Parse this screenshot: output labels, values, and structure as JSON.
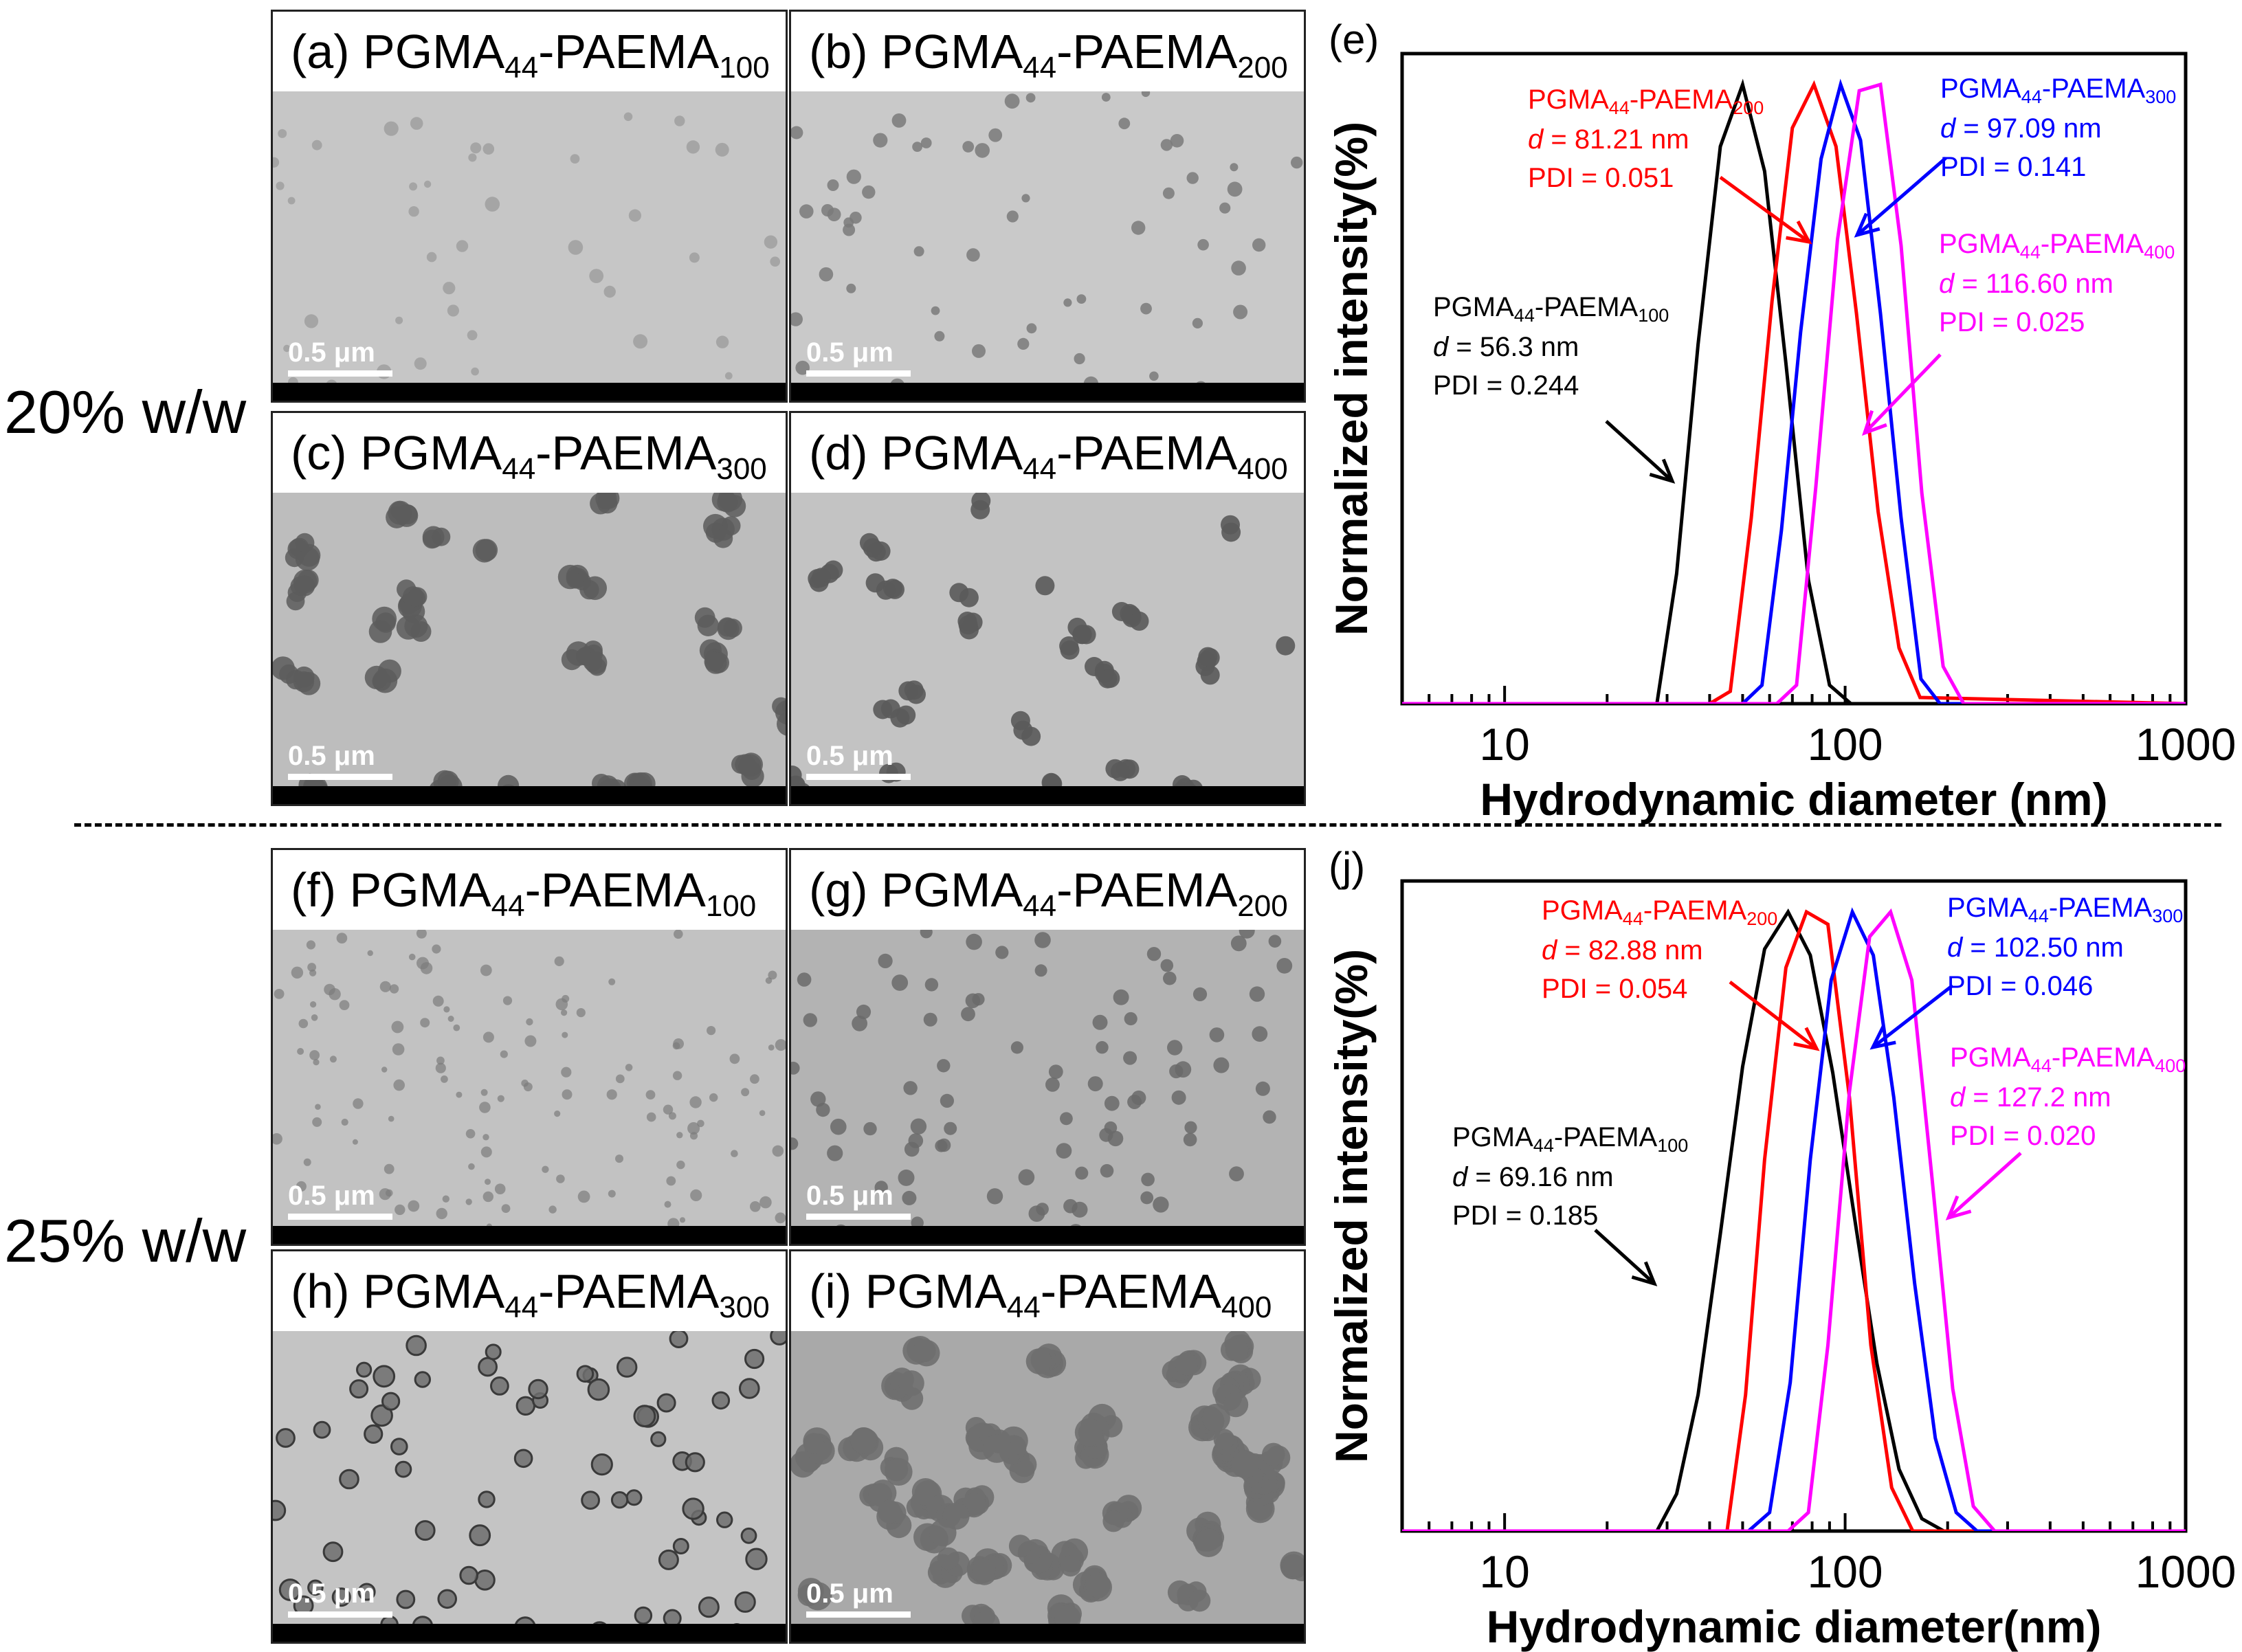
{
  "row_labels": {
    "top": "20% w/w",
    "bottom": "25% w/w"
  },
  "tem_panels": [
    {
      "letter": "(a)",
      "base": "PGMA",
      "sub1": "44",
      "mid": "-PAEMA",
      "sub2": "100",
      "scale": "0.5 μm",
      "tone": "#c6c6c6",
      "pattern": "sparse-light"
    },
    {
      "letter": "(b)",
      "base": "PGMA",
      "sub1": "44",
      "mid": "-PAEMA",
      "sub2": "200",
      "scale": "0.5 μm",
      "tone": "#c9c9c9",
      "pattern": "sparse-dots"
    },
    {
      "letter": "(c)",
      "base": "PGMA",
      "sub1": "44",
      "mid": "-PAEMA",
      "sub2": "300",
      "scale": "0.5 μm",
      "tone": "#bdbdbd",
      "pattern": "dense-aggregates"
    },
    {
      "letter": "(d)",
      "base": "PGMA",
      "sub1": "44",
      "mid": "-PAEMA",
      "sub2": "400",
      "scale": "0.5 μm",
      "tone": "#c3c3c3",
      "pattern": "chains"
    },
    {
      "letter": "(f)",
      "base": "PGMA",
      "sub1": "44",
      "mid": "-PAEMA",
      "sub2": "100",
      "scale": "0.5 μm",
      "tone": "#c2c2c2",
      "pattern": "small-dots"
    },
    {
      "letter": "(g)",
      "base": "PGMA",
      "sub1": "44",
      "mid": "-PAEMA",
      "sub2": "200",
      "scale": "0.5 μm",
      "tone": "#b3b3b3",
      "pattern": "uniform-spheres"
    },
    {
      "letter": "(h)",
      "base": "PGMA",
      "sub1": "44",
      "mid": "-PAEMA",
      "sub2": "300",
      "scale": "0.5 μm",
      "tone": "#c4c4c4",
      "pattern": "ringed-spheres"
    },
    {
      "letter": "(i)",
      "base": "PGMA",
      "sub1": "44",
      "mid": "-PAEMA",
      "sub2": "400",
      "scale": "0.5 μm",
      "tone": "#a9a9a9",
      "pattern": "network"
    }
  ],
  "chart_data": [
    {
      "panel_label": "(e)",
      "type": "line",
      "xscale": "log",
      "xlim": [
        5,
        1000
      ],
      "ylim": [
        0,
        1.05
      ],
      "xticks": [
        10,
        100,
        1000
      ],
      "xtick_labels": [
        "10",
        "100",
        "1000"
      ],
      "xlabel": "Hydrodynamic diameter (nm)",
      "ylabel": "Normalized intensity(%)",
      "series": [
        {
          "name": "PGMA44-PAEMA100",
          "color": "#000000",
          "x": [
            5,
            28,
            32,
            37,
            43,
            50,
            58,
            67,
            78,
            90,
            104,
            1000
          ],
          "y": [
            0,
            0,
            0.21,
            0.58,
            0.9,
            1.0,
            0.86,
            0.55,
            0.2,
            0.03,
            0,
            0
          ]
        },
        {
          "name": "PGMA44-PAEMA200",
          "color": "#ff0000",
          "x": [
            5,
            40,
            46,
            53,
            61,
            70,
            81,
            94,
            108,
            125,
            144,
            166,
            1000
          ],
          "y": [
            0,
            0,
            0.02,
            0.3,
            0.65,
            0.93,
            1.0,
            0.9,
            0.63,
            0.31,
            0.09,
            0.01,
            0
          ]
        },
        {
          "name": "PGMA44-PAEMA300",
          "color": "#0000ff",
          "x": [
            5,
            50,
            57,
            65,
            74,
            85,
            97,
            111,
            127,
            146,
            167,
            190,
            1000
          ],
          "y": [
            0,
            0,
            0.03,
            0.28,
            0.6,
            0.88,
            1.0,
            0.91,
            0.63,
            0.3,
            0.04,
            0,
            0
          ]
        },
        {
          "name": "PGMA44-PAEMA400",
          "color": "#ff00ff",
          "x": [
            5,
            63,
            72,
            82,
            95,
            110,
            127,
            146,
            168,
            194,
            223,
            1000
          ],
          "y": [
            0,
            0,
            0.03,
            0.35,
            0.75,
            0.99,
            1.0,
            0.74,
            0.34,
            0.06,
            0,
            0
          ]
        }
      ],
      "annotations": [
        {
          "color": "#000000",
          "base": "PGMA",
          "sub1": "44",
          "mid": "-PAEMA",
          "sub2": "100",
          "d": "56.3 nm",
          "pdi": "PDI = 0.244"
        },
        {
          "color": "#ff0000",
          "base": "PGMA",
          "sub1": "44",
          "mid": "-PAEMA",
          "sub2": "200",
          "d": "81.21 nm",
          "pdi": "PDI = 0.051"
        },
        {
          "color": "#0000ff",
          "base": "PGMA",
          "sub1": "44",
          "mid": "-PAEMA",
          "sub2": "300",
          "d": "97.09 nm",
          "pdi": "PDI = 0.141"
        },
        {
          "color": "#ff00ff",
          "base": "PGMA",
          "sub1": "44",
          "mid": "-PAEMA",
          "sub2": "400",
          "d": "116.60 nm",
          "pdi": "PDI = 0.025"
        }
      ]
    },
    {
      "panel_label": "(j)",
      "type": "line",
      "xscale": "log",
      "xlim": [
        5,
        1000
      ],
      "ylim": [
        0,
        1.05
      ],
      "xticks": [
        10,
        100,
        1000
      ],
      "xtick_labels": [
        "10",
        "100",
        "1000"
      ],
      "xlabel": "Hydrodynamic diameter(nm)",
      "ylabel": "Normalized intensity(%)",
      "series": [
        {
          "name": "PGMA44-PAEMA100",
          "color": "#000000",
          "x": [
            5,
            28,
            32,
            37,
            43,
            50,
            58,
            68,
            79,
            92,
            107,
            124,
            144,
            168,
            195,
            1000
          ],
          "y": [
            0,
            0,
            0.06,
            0.22,
            0.48,
            0.75,
            0.94,
            1.0,
            0.93,
            0.74,
            0.5,
            0.27,
            0.1,
            0.02,
            0,
            0
          ]
        },
        {
          "name": "PGMA44-PAEMA200",
          "color": "#ff0000",
          "x": [
            5,
            45,
            51,
            58,
            67,
            77,
            89,
            103,
            119,
            137,
            158,
            1000
          ],
          "y": [
            0,
            0,
            0.22,
            0.6,
            0.91,
            1.0,
            0.98,
            0.7,
            0.3,
            0.07,
            0,
            0
          ]
        },
        {
          "name": "PGMA44-PAEMA300",
          "color": "#0000ff",
          "x": [
            5,
            52,
            60,
            69,
            79,
            91,
            105,
            121,
            139,
            160,
            184,
            212,
            244,
            280,
            1000
          ],
          "y": [
            0,
            0,
            0.03,
            0.24,
            0.6,
            0.89,
            1.0,
            0.93,
            0.7,
            0.4,
            0.15,
            0.03,
            0,
            0,
            0
          ]
        },
        {
          "name": "PGMA44-PAEMA400",
          "color": "#ff00ff",
          "x": [
            5,
            68,
            78,
            89,
            103,
            118,
            136,
            157,
            180,
            207,
            238,
            275,
            1000
          ],
          "y": [
            0,
            0,
            0.03,
            0.3,
            0.71,
            0.96,
            1.0,
            0.89,
            0.57,
            0.23,
            0.04,
            0,
            0
          ]
        }
      ],
      "annotations": [
        {
          "color": "#000000",
          "base": "PGMA",
          "sub1": "44",
          "mid": "-PAEMA",
          "sub2": "100",
          "d": "69.16 nm",
          "pdi": "PDI = 0.185"
        },
        {
          "color": "#ff0000",
          "base": "PGMA",
          "sub1": "44",
          "mid": "-PAEMA",
          "sub2": "200",
          "d": "82.88 nm",
          "pdi": "PDI = 0.054"
        },
        {
          "color": "#0000ff",
          "base": "PGMA",
          "sub1": "44",
          "mid": "-PAEMA",
          "sub2": "300",
          "d": "102.50 nm",
          "pdi": "PDI = 0.046"
        },
        {
          "color": "#ff00ff",
          "base": "PGMA",
          "sub1": "44",
          "mid": "-PAEMA",
          "sub2": "400",
          "d": "127.2 nm",
          "pdi": "PDI = 0.020"
        }
      ]
    }
  ]
}
